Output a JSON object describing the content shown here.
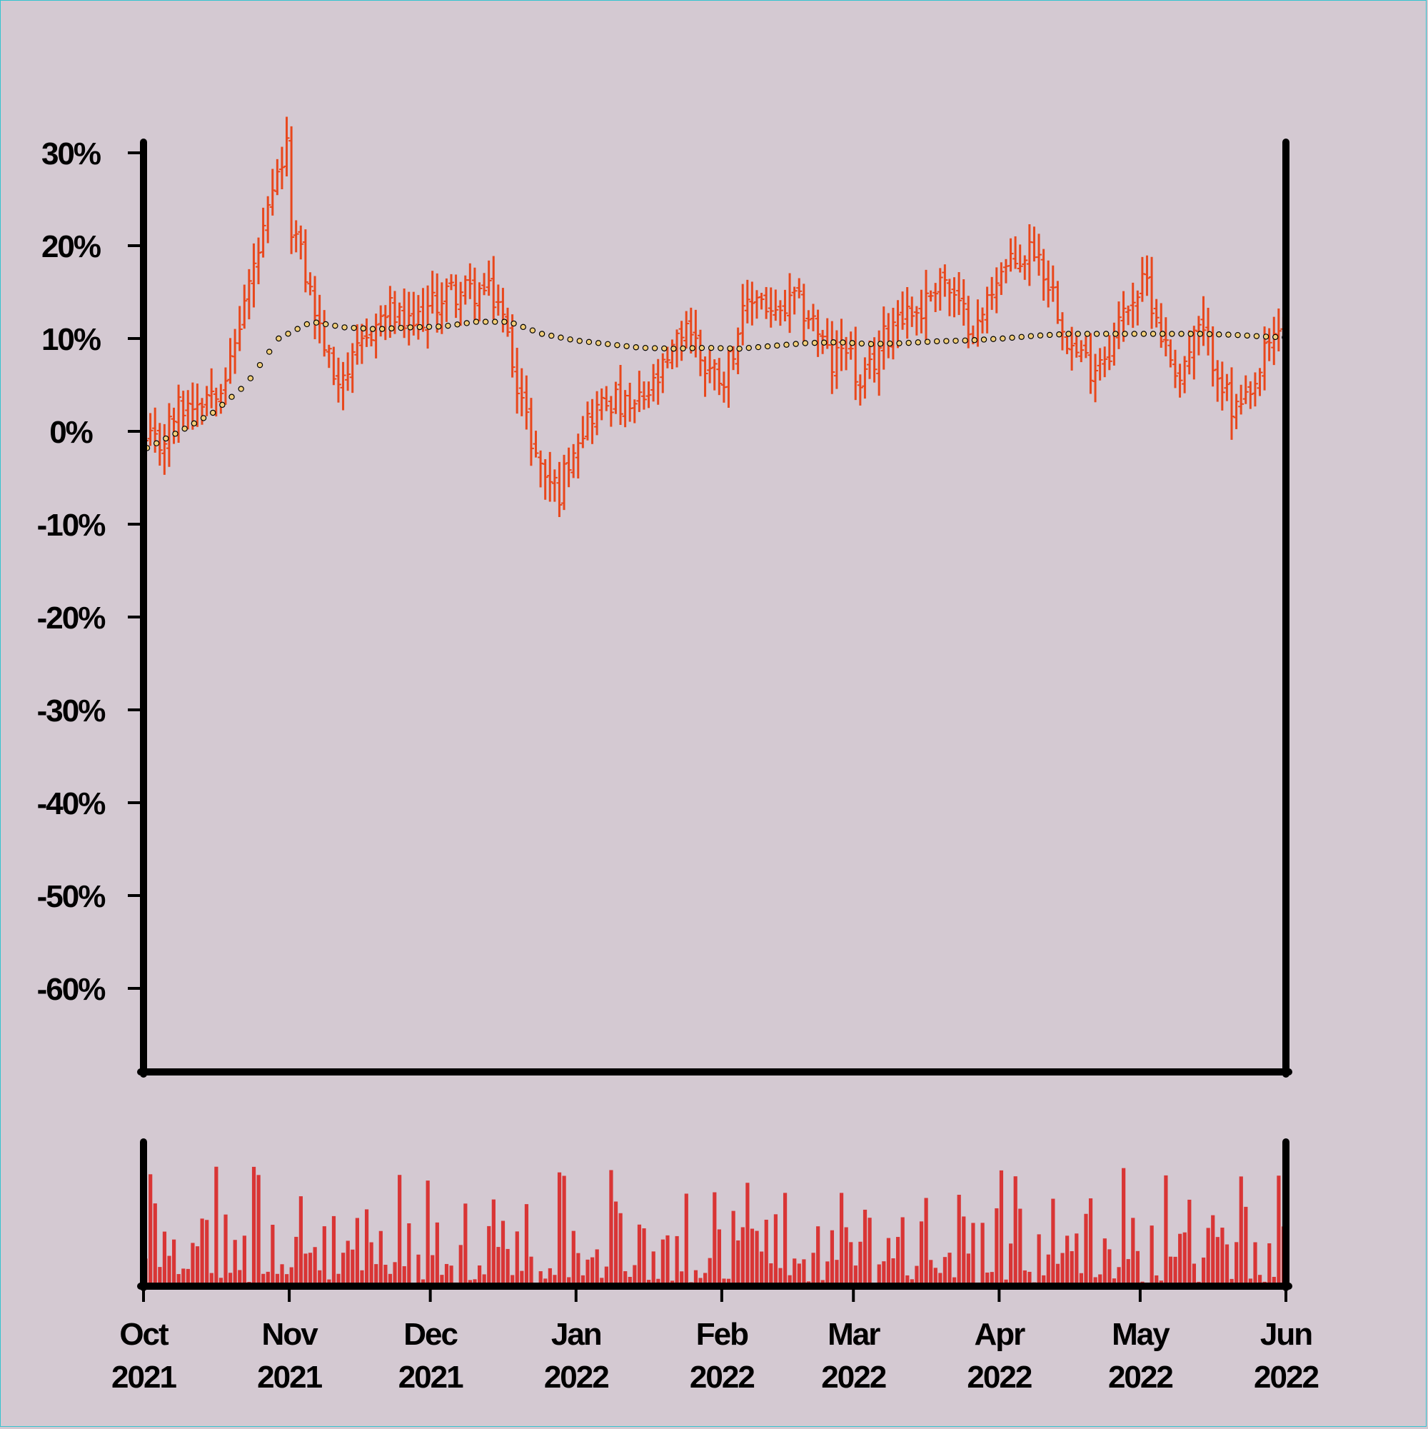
{
  "chart_data": {
    "type": "ohlc",
    "title": "",
    "xlabel": "",
    "ylabel": "",
    "y_axis": {
      "ticks": [
        30,
        20,
        10,
        0,
        -10,
        -20,
        -30,
        -40,
        -50,
        -60
      ],
      "tick_labels": [
        "30%",
        "20%",
        "10%",
        "0%",
        "-10%",
        "-20%",
        "-30%",
        "-40%",
        "-50%",
        "-60%"
      ],
      "ylim": [
        -69,
        31
      ]
    },
    "x_axis": {
      "range": [
        "2021-10-01",
        "2022-06-01"
      ],
      "ticks": [
        "2021-10-01",
        "2021-11-01",
        "2021-12-01",
        "2022-01-01",
        "2022-02-01",
        "2022-03-01",
        "2022-04-01",
        "2022-05-01",
        "2022-06-01"
      ],
      "tick_labels": [
        [
          "Oct",
          "2021"
        ],
        [
          "Nov",
          "2021"
        ],
        [
          "Dec",
          "2021"
        ],
        [
          "Jan",
          "2022"
        ],
        [
          "Feb",
          "2022"
        ],
        [
          "Mar",
          "2022"
        ],
        [
          "Apr",
          "2022"
        ],
        [
          "May",
          "2022"
        ],
        [
          "Jun",
          "2022"
        ]
      ]
    },
    "price_anchors": [
      [
        "2021-10-01",
        -1.5
      ],
      [
        "2021-10-04",
        -1.5
      ],
      [
        "2021-10-08",
        2.5
      ],
      [
        "2021-10-12",
        3.5
      ],
      [
        "2021-10-16",
        5
      ],
      [
        "2021-10-19",
        7
      ],
      [
        "2021-10-22",
        14
      ],
      [
        "2021-10-26",
        21
      ],
      [
        "2021-10-30",
        29
      ],
      [
        "2021-10-31",
        30
      ],
      [
        "2021-11-01",
        22.5
      ],
      [
        "2021-11-04",
        17
      ],
      [
        "2021-11-07",
        11
      ],
      [
        "2021-11-10",
        6
      ],
      [
        "2021-11-14",
        7
      ],
      [
        "2021-11-18",
        11
      ],
      [
        "2021-11-22",
        13
      ],
      [
        "2021-11-26",
        11
      ],
      [
        "2021-11-30",
        13
      ],
      [
        "2021-12-04",
        15
      ],
      [
        "2021-12-08",
        15
      ],
      [
        "2021-12-12",
        15
      ],
      [
        "2021-12-15",
        14
      ],
      [
        "2021-12-18",
        8
      ],
      [
        "2021-12-21",
        1
      ],
      [
        "2021-12-24",
        -4
      ],
      [
        "2021-12-28",
        -6.5
      ],
      [
        "2021-12-31",
        -1
      ],
      [
        "2022-01-04",
        2
      ],
      [
        "2022-01-08",
        3.5
      ],
      [
        "2022-01-12",
        2
      ],
      [
        "2022-01-16",
        4
      ],
      [
        "2022-01-20",
        7
      ],
      [
        "2022-01-24",
        12
      ],
      [
        "2022-01-28",
        7
      ],
      [
        "2022-02-01",
        6
      ],
      [
        "2022-02-04",
        11
      ],
      [
        "2022-02-08",
        15
      ],
      [
        "2022-02-12",
        12
      ],
      [
        "2022-02-16",
        14
      ],
      [
        "2022-02-20",
        12
      ],
      [
        "2022-02-24",
        7
      ],
      [
        "2022-02-27",
        10
      ],
      [
        "2022-03-02",
        4
      ],
      [
        "2022-03-06",
        9
      ],
      [
        "2022-03-10",
        13
      ],
      [
        "2022-03-15",
        13
      ],
      [
        "2022-03-19",
        17
      ],
      [
        "2022-03-23",
        13
      ],
      [
        "2022-03-27",
        11
      ],
      [
        "2022-03-31",
        17
      ],
      [
        "2022-04-04",
        18
      ],
      [
        "2022-04-08",
        20
      ],
      [
        "2022-04-12",
        15
      ],
      [
        "2022-04-16",
        9
      ],
      [
        "2022-04-20",
        7
      ],
      [
        "2022-04-24",
        9
      ],
      [
        "2022-04-28",
        14
      ],
      [
        "2022-05-02",
        16
      ],
      [
        "2022-05-06",
        9
      ],
      [
        "2022-05-09",
        6
      ],
      [
        "2022-05-13",
        11
      ],
      [
        "2022-05-17",
        7
      ],
      [
        "2022-05-20",
        2
      ],
      [
        "2022-05-24",
        3
      ],
      [
        "2022-05-27",
        8
      ],
      [
        "2022-05-31",
        12
      ],
      [
        "2022-06-01",
        14
      ]
    ],
    "moving_average_anchors": [
      [
        "2021-10-01",
        -1.8
      ],
      [
        "2021-10-08",
        0
      ],
      [
        "2021-10-15",
        2
      ],
      [
        "2021-10-22",
        5
      ],
      [
        "2021-10-29",
        10
      ],
      [
        "2021-11-05",
        11.8
      ],
      [
        "2021-11-12",
        11.2
      ],
      [
        "2021-11-19",
        11
      ],
      [
        "2021-11-26",
        11.2
      ],
      [
        "2021-12-03",
        11.3
      ],
      [
        "2021-12-10",
        11.8
      ],
      [
        "2021-12-17",
        11.8
      ],
      [
        "2021-12-24",
        10.5
      ],
      [
        "2021-12-31",
        9.8
      ],
      [
        "2022-01-07",
        9.4
      ],
      [
        "2022-01-14",
        9
      ],
      [
        "2022-01-21",
        8.9
      ],
      [
        "2022-01-28",
        9
      ],
      [
        "2022-02-04",
        8.9
      ],
      [
        "2022-02-11",
        9.2
      ],
      [
        "2022-02-18",
        9.5
      ],
      [
        "2022-02-25",
        9.6
      ],
      [
        "2022-03-04",
        9.4
      ],
      [
        "2022-03-11",
        9.5
      ],
      [
        "2022-03-18",
        9.7
      ],
      [
        "2022-03-25",
        9.8
      ],
      [
        "2022-04-01",
        10
      ],
      [
        "2022-04-08",
        10.3
      ],
      [
        "2022-04-15",
        10.5
      ],
      [
        "2022-04-22",
        10.5
      ],
      [
        "2022-04-29",
        10.5
      ],
      [
        "2022-05-06",
        10.5
      ],
      [
        "2022-05-13",
        10.5
      ],
      [
        "2022-05-20",
        10.4
      ],
      [
        "2022-05-27",
        10.2
      ],
      [
        "2022-06-01",
        10.1
      ]
    ],
    "volume_range": [
      0,
      1
    ],
    "colors": {
      "background": "#d4c9d2",
      "price_bars": "#e8471c",
      "volume_bars": "#d93535",
      "moving_average_fill": "#f2cf7a",
      "moving_average_stroke": "#000000",
      "axes": "#000000",
      "border": "#35c4cf"
    },
    "grid": false,
    "legend": "none"
  }
}
